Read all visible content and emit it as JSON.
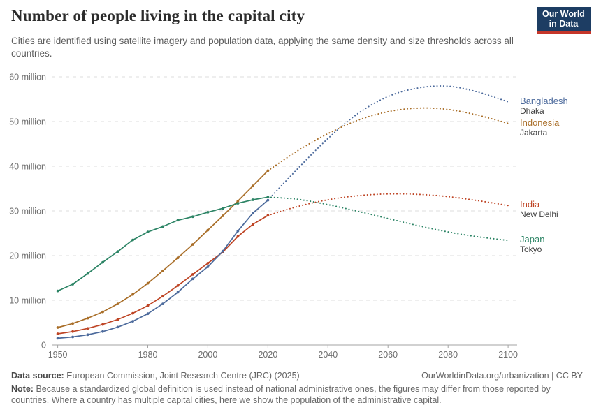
{
  "header": {
    "title": "Number of people living in the capital city",
    "subtitle": "Cities are identified using satellite imagery and population data, applying the same density and size thresholds across all countries.",
    "logo": {
      "line1": "Our World",
      "line2": "in Data"
    }
  },
  "chart_data": {
    "type": "line",
    "title": "Number of people living in the capital city",
    "unit": "million people",
    "xlim": [
      1948,
      2103
    ],
    "ylim": [
      0,
      60
    ],
    "grid": "dashed-horizontal",
    "legend_position": "right-of-line-ends",
    "xticks": [
      1950,
      1980,
      2000,
      2020,
      2040,
      2060,
      2080,
      2100
    ],
    "yticks": [
      {
        "value": 0,
        "label": "0"
      },
      {
        "value": 10,
        "label": "10 million"
      },
      {
        "value": 20,
        "label": "20 million"
      },
      {
        "value": 30,
        "label": "30 million"
      },
      {
        "value": 40,
        "label": "40 million"
      },
      {
        "value": 50,
        "label": "50 million"
      },
      {
        "value": 60,
        "label": "60 million"
      }
    ],
    "projection_start": 2020,
    "series": [
      {
        "entity": "Bangladesh",
        "city": "Dhaka",
        "color": "#4C6A9C",
        "years_observed": [
          1950,
          1955,
          1960,
          1965,
          1970,
          1975,
          1980,
          1985,
          1990,
          1995,
          2000,
          2005,
          2010,
          2015,
          2020
        ],
        "observed": [
          1.5,
          1.8,
          2.3,
          3.0,
          4.0,
          5.3,
          7.0,
          9.2,
          11.8,
          14.8,
          17.5,
          21.0,
          25.5,
          29.5,
          32.4
        ],
        "years_projected": [
          2020,
          2030,
          2040,
          2050,
          2060,
          2070,
          2080,
          2090,
          2100
        ],
        "projected": [
          32.4,
          39.5,
          46.2,
          51.8,
          55.6,
          57.5,
          57.9,
          56.6,
          54.4
        ]
      },
      {
        "entity": "Indonesia",
        "city": "Jakarta",
        "color": "#A96E28",
        "years_observed": [
          1950,
          1955,
          1960,
          1965,
          1970,
          1975,
          1980,
          1985,
          1990,
          1995,
          2000,
          2005,
          2010,
          2015,
          2020
        ],
        "observed": [
          3.9,
          4.8,
          6.0,
          7.4,
          9.2,
          11.3,
          13.8,
          16.6,
          19.5,
          22.5,
          25.7,
          28.9,
          32.2,
          35.6,
          39.0
        ],
        "years_projected": [
          2020,
          2030,
          2040,
          2050,
          2060,
          2070,
          2080,
          2090,
          2100
        ],
        "projected": [
          39.0,
          43.5,
          47.3,
          50.3,
          52.2,
          53.0,
          52.7,
          51.4,
          49.6
        ]
      },
      {
        "entity": "India",
        "city": "New Delhi",
        "color": "#BE4424",
        "years_observed": [
          1950,
          1955,
          1960,
          1965,
          1970,
          1975,
          1980,
          1985,
          1990,
          1995,
          2000,
          2005,
          2010,
          2015,
          2020
        ],
        "observed": [
          2.5,
          3.0,
          3.7,
          4.6,
          5.7,
          7.1,
          8.8,
          10.9,
          13.3,
          15.8,
          18.3,
          20.8,
          24.3,
          27.0,
          29.0
        ],
        "years_projected": [
          2020,
          2030,
          2040,
          2050,
          2060,
          2070,
          2080,
          2090,
          2100
        ],
        "projected": [
          29.0,
          31.0,
          32.5,
          33.4,
          33.8,
          33.7,
          33.2,
          32.3,
          31.2
        ]
      },
      {
        "entity": "Japan",
        "city": "Tokyo",
        "color": "#2C8465",
        "years_observed": [
          1950,
          1955,
          1960,
          1965,
          1970,
          1975,
          1980,
          1985,
          1990,
          1995,
          2000,
          2005,
          2010,
          2015,
          2020
        ],
        "observed": [
          12.1,
          13.6,
          16.0,
          18.5,
          20.9,
          23.5,
          25.3,
          26.5,
          27.9,
          28.7,
          29.7,
          30.6,
          31.7,
          32.5,
          33.1
        ],
        "years_projected": [
          2020,
          2030,
          2040,
          2050,
          2060,
          2070,
          2080,
          2090,
          2100
        ],
        "projected": [
          33.1,
          32.6,
          31.4,
          29.9,
          28.3,
          26.7,
          25.3,
          24.2,
          23.4
        ]
      }
    ]
  },
  "footer": {
    "data_source_label": "Data source:",
    "data_source": "European Commission, Joint Research Centre (JRC) (2025)",
    "attribution": "OurWorldinData.org/urbanization | CC BY",
    "note_label": "Note:",
    "note": "Because a standardized global definition is used instead of national administrative ones, the figures may differ from those reported by countries. Where a country has multiple capital cities, here we show the population of the administrative capital."
  }
}
